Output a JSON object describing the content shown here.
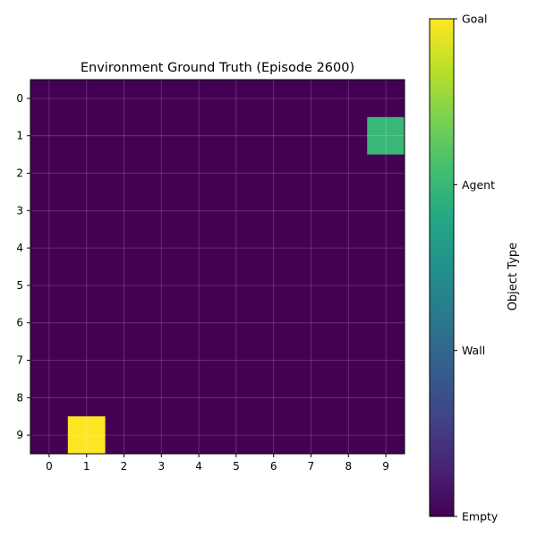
{
  "chart_data": {
    "type": "heatmap",
    "title": "Environment Ground Truth (Episode 2600)",
    "rows": [
      0,
      1,
      2,
      3,
      4,
      5,
      6,
      7,
      8,
      9
    ],
    "cols": [
      0,
      1,
      2,
      3,
      4,
      5,
      6,
      7,
      8,
      9
    ],
    "values": [
      [
        0,
        0,
        0,
        0,
        0,
        0,
        0,
        0,
        0,
        0
      ],
      [
        0,
        0,
        0,
        0,
        0,
        0,
        0,
        0,
        0,
        2
      ],
      [
        0,
        0,
        0,
        0,
        0,
        0,
        0,
        0,
        0,
        0
      ],
      [
        0,
        0,
        0,
        0,
        0,
        0,
        0,
        0,
        0,
        0
      ],
      [
        0,
        0,
        0,
        0,
        0,
        0,
        0,
        0,
        0,
        0
      ],
      [
        0,
        0,
        0,
        0,
        0,
        0,
        0,
        0,
        0,
        0
      ],
      [
        0,
        0,
        0,
        0,
        0,
        0,
        0,
        0,
        0,
        0
      ],
      [
        0,
        0,
        0,
        0,
        0,
        0,
        0,
        0,
        0,
        0
      ],
      [
        0,
        0,
        0,
        0,
        0,
        0,
        0,
        0,
        0,
        0
      ],
      [
        0,
        3,
        0,
        0,
        0,
        0,
        0,
        0,
        0,
        0
      ]
    ],
    "grid": true,
    "colormap": "viridis",
    "colorbar": {
      "label": "Object Type",
      "range": [
        0,
        3
      ],
      "ticks": [
        {
          "value": 0,
          "label": "Empty"
        },
        {
          "value": 1,
          "label": "Wall"
        },
        {
          "value": 2,
          "label": "Agent"
        },
        {
          "value": 3,
          "label": "Goal"
        }
      ]
    }
  }
}
